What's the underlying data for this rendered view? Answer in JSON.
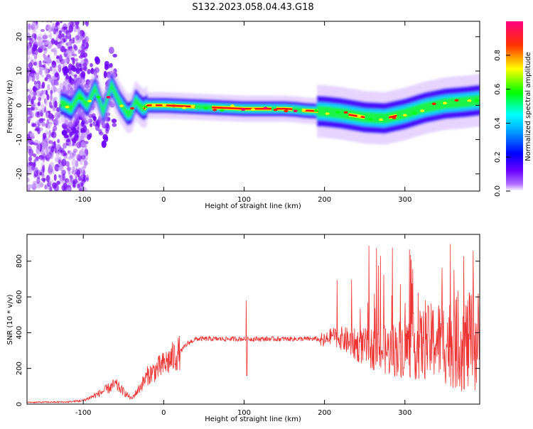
{
  "title": "S132.2023.058.04.43.G18",
  "chart_data": [
    {
      "type": "heatmap",
      "xlabel": "Height of straight line (km)",
      "ylabel": "Frequency (Hz)",
      "xlim": [
        -170,
        393
      ],
      "ylim": [
        -25,
        24.5
      ],
      "xticks": [
        -100,
        0,
        100,
        200,
        300
      ],
      "yticks": [
        -20,
        -10,
        0,
        10,
        20
      ],
      "colorbar": {
        "label": "Normalized spectral amplitude",
        "range": [
          0,
          1
        ],
        "ticks": [
          0.0,
          0.2,
          0.4,
          0.6,
          0.8
        ],
        "colormap": [
          "#ffffff",
          "#7b00ff",
          "#0000ff",
          "#00ffff",
          "#00ff00",
          "#ffff00",
          "#ff0000",
          "#ff0080"
        ]
      },
      "ridge": {
        "x": [
          -125,
          -115,
          -105,
          -95,
          -85,
          -75,
          -65,
          -55,
          -45,
          -40,
          -35,
          -30,
          -25,
          -20,
          0,
          50,
          100,
          150,
          165,
          175,
          200,
          220,
          250,
          275,
          300,
          325,
          350,
          375,
          393
        ],
        "y": [
          0.5,
          -1,
          3,
          0,
          5,
          -2,
          6,
          1,
          -2.5,
          -2,
          1.5,
          0,
          -1,
          0,
          0,
          -0.5,
          -1,
          -1,
          -1.2,
          -1.5,
          -1.8,
          -2.3,
          -3.5,
          -3.8,
          -2.5,
          -0.7,
          0.5,
          1.0,
          1.5
        ]
      }
    },
    {
      "type": "line",
      "xlabel": "Height of straight line (km)",
      "ylabel": "SNR (10 * v/v)",
      "xlim": [
        -170,
        393
      ],
      "ylim": [
        0,
        950
      ],
      "xticks": [
        -100,
        0,
        100,
        200,
        300
      ],
      "yticks": [
        0,
        200,
        400,
        600,
        800
      ],
      "series": [
        {
          "color": "#ee3333",
          "envelope_x": [
            -170,
            -120,
            -100,
            -80,
            -60,
            -50,
            -40,
            -30,
            -20,
            0,
            20,
            30,
            40,
            60,
            100,
            150,
            190,
            200,
            210,
            220,
            240,
            260,
            280,
            300,
            320,
            340,
            360,
            380,
            393
          ],
          "envelope_y": [
            10,
            12,
            20,
            60,
            110,
            70,
            30,
            90,
            160,
            220,
            290,
            340,
            365,
            365,
            365,
            365,
            365,
            350,
            390,
            370,
            330,
            310,
            300,
            320,
            330,
            360,
            340,
            340,
            350
          ],
          "spike": {
            "x": 103,
            "low": 160,
            "high": 580
          }
        }
      ]
    }
  ]
}
